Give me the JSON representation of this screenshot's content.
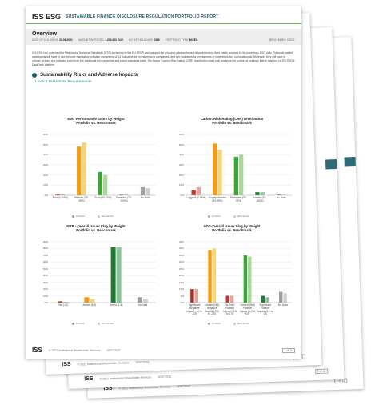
{
  "header": {
    "logo": "ISS ESG",
    "title": "SUSTAINABLE FINANCE DISCLOSURE REGULATION PORTFOLIO REPORT"
  },
  "overview": {
    "title": "Overview",
    "fields": [
      {
        "label": "DATE OF HOLDINGS:",
        "value": "30-06-2021"
      },
      {
        "label": "AMOUNT INVESTED:",
        "value": "1,000,000 EUR"
      },
      {
        "label": "NO. OF HOLDINGS:",
        "value": "1586"
      },
      {
        "label": "PORTFOLIO TYPE:",
        "value": "MIXED"
      }
    ],
    "benchmark_label": "BENCHMARK USED:"
  },
  "intro": "ISS ESG has reviewed the Regulatory Technical Standards (RTS) pertaining to the EU SFDR and mapped the principal adverse impact requirements to data points covered by its proprietary ESG data. Financial market participants will have to use the core mandatory indicator comprising of 14 indicators for investments in companies, and two indicators for investments in sovereigns and supranationals. Moreover, they will have to choose at least one indicator each from the additional environmental and social indicators table. The below 'Carbon Risk Rating (CRR)' distribution chart only analyses the portion of holdings that is mapped on ISS ESG's DataDesk platform.",
  "section": "Sustainability Risks and Adverse Impacts",
  "subsection": "Level 1 Disclosure Requirements",
  "charts": [
    {
      "type": "bar",
      "title": "ESG Performance Score by Weight",
      "subtitle": "Portfolio vs. Benchmark",
      "categories": [
        "Poor (0-24%)",
        "Medium (25-49%)",
        "Good (50-74%)",
        "Excellent (75-100%)",
        "No Data"
      ],
      "series": [
        {
          "name": "Portfolio",
          "colors": [
            "#c0392b",
            "#f39c12",
            "#3aa635",
            "#1e7b34",
            "#9e9e9e"
          ],
          "values": [
            1,
            48,
            23,
            0.5,
            8
          ]
        },
        {
          "name": "Benchmark",
          "colors": [
            "#e6a4a0",
            "#f9d27a",
            "#a8d99b",
            "#8cc49a",
            "#d0d0d0"
          ],
          "values": [
            1,
            52,
            20,
            0.5,
            7
          ]
        }
      ],
      "ylim": [
        0,
        60
      ],
      "yticks": [
        {
          "value": 0,
          "label": "0%"
        },
        {
          "value": 10,
          "label": "10%"
        },
        {
          "value": 20,
          "label": "20%"
        },
        {
          "value": 30,
          "label": "30%"
        },
        {
          "value": 40,
          "label": "40%"
        },
        {
          "value": 50,
          "label": "50%"
        },
        {
          "value": 60,
          "label": "60%"
        }
      ],
      "grid": true
    },
    {
      "type": "bar",
      "title": "Carbon Risk Rating (CRR) Distribution",
      "subtitle": "Portfolio vs. Benchmark",
      "categories": [
        "Laggard (0-24%)",
        "Underperformer (25-49%)",
        "Performer (50-74%)",
        "Leader (75-100%)",
        "No Data"
      ],
      "series": [
        {
          "name": "Portfolio",
          "colors": [
            "#c0392b",
            "#f39c12",
            "#3aa635",
            "#1e7b34",
            "#9e9e9e"
          ],
          "values": [
            5,
            51,
            38,
            3,
            1
          ]
        },
        {
          "name": "Benchmark",
          "colors": [
            "#e6a4a0",
            "#f9d27a",
            "#a8d99b",
            "#8cc49a",
            "#d0d0d0"
          ],
          "values": [
            8,
            45,
            40,
            3,
            1
          ]
        }
      ],
      "ylim": [
        0,
        60
      ],
      "yticks": [
        {
          "value": 0,
          "label": "0%"
        },
        {
          "value": 10,
          "label": "10%"
        },
        {
          "value": 20,
          "label": "20%"
        },
        {
          "value": 30,
          "label": "30%"
        },
        {
          "value": 40,
          "label": "40%"
        },
        {
          "value": 50,
          "label": "50%"
        },
        {
          "value": 60,
          "label": "60%"
        }
      ],
      "grid": true
    },
    {
      "type": "bar",
      "title": "NBR - Overall Issuer Flag by Weight",
      "subtitle": "Portfolio vs. Benchmark",
      "categories": [
        "Red (10)",
        "Amber (6-9)",
        "Green (1-5)",
        "No Data"
      ],
      "series": [
        {
          "name": "Portfolio",
          "colors": [
            "#c0392b",
            "#f39c12",
            "#1e7b34",
            "#9e9e9e"
          ],
          "values": [
            2,
            8,
            82,
            8
          ]
        },
        {
          "name": "Benchmark",
          "colors": [
            "#e6a4a0",
            "#f9d27a",
            "#8cc49a",
            "#d0d0d0"
          ],
          "values": [
            1,
            5,
            82,
            6
          ]
        }
      ],
      "ylim": [
        0,
        90
      ],
      "yticks": [
        {
          "value": 0,
          "label": "0%"
        },
        {
          "value": 10,
          "label": "10%"
        },
        {
          "value": 20,
          "label": "20%"
        },
        {
          "value": 30,
          "label": "30%"
        },
        {
          "value": 40,
          "label": "40%"
        },
        {
          "value": 50,
          "label": "50%"
        },
        {
          "value": 60,
          "label": "60%"
        },
        {
          "value": 70,
          "label": "70%"
        },
        {
          "value": 80,
          "label": "80%"
        },
        {
          "value": 90,
          "label": "90%"
        }
      ],
      "grid": true
    },
    {
      "type": "bar",
      "title": "SDG-Overall Issuer Flag by Weight",
      "subtitle": "Portfolio vs. Benchmark",
      "categories": [
        "Significant Negative Impact (-10 to -5.0)",
        "Limited (Net) Negative Impact (-5.0 to -2.6)",
        "No (Net) Positive Impact (-1.5 to 1.0)",
        "Limited (Net) Positive Impact (1.0 to 5.0)",
        "Significant Positive Impact (5.1 to 10)",
        "No Data"
      ],
      "series": [
        {
          "name": "Portfolio",
          "colors": [
            "#a93226",
            "#f39c12",
            "#c0392b",
            "#3aa635",
            "#1e7b34",
            "#9e9e9e"
          ],
          "values": [
            10,
            39,
            5,
            35,
            5,
            8
          ]
        },
        {
          "name": "Benchmark",
          "colors": [
            "#e6a4a0",
            "#f9d27a",
            "#e6a4a0",
            "#a8d99b",
            "#8cc49a",
            "#d0d0d0"
          ],
          "values": [
            10,
            40,
            5,
            34,
            4,
            7
          ]
        }
      ],
      "ylim": [
        0,
        45
      ],
      "yticks": [
        {
          "value": 0,
          "label": "0%"
        },
        {
          "value": 5,
          "label": "5%"
        },
        {
          "value": 10,
          "label": "10%"
        },
        {
          "value": 15,
          "label": "15%"
        },
        {
          "value": 20,
          "label": "20%"
        },
        {
          "value": 25,
          "label": "25%"
        },
        {
          "value": 30,
          "label": "30%"
        },
        {
          "value": 35,
          "label": "35%"
        },
        {
          "value": 40,
          "label": "40%"
        },
        {
          "value": 45,
          "label": "45%"
        }
      ],
      "grid": true
    }
  ],
  "footer": {
    "logo": "ISS",
    "copyright": "© 2021 Institutional Shareholder Services",
    "date": "15/07/2021",
    "page": "1 of 11"
  },
  "back_pages": [
    {
      "copyright": "© 2021 Institutional Shareholder Services",
      "date": "15/07/2021",
      "page": "2 of 11"
    },
    {
      "copyright": "© 2021 Institutional Shareholder Services",
      "date": "15/07/2021",
      "page": "3 of 11"
    },
    {
      "copyright": "© 2021 Institutional Shareholder Services",
      "date": "15/07/2021",
      "page": "4 of 11"
    }
  ]
}
